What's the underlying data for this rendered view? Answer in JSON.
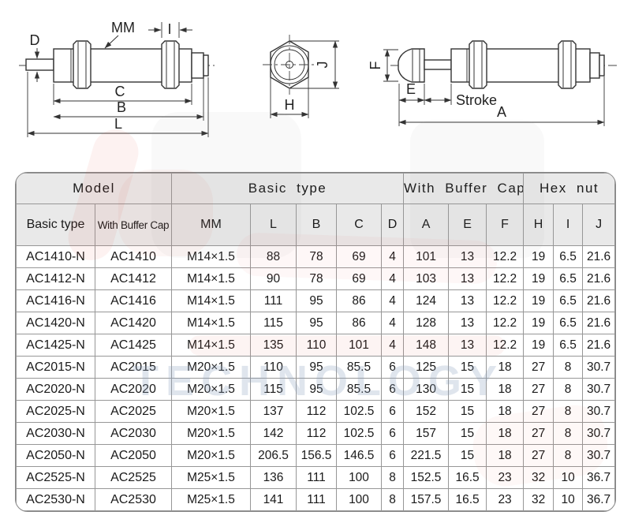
{
  "diagram_labels": {
    "side_view": {
      "thread": "MM",
      "nut_width": "I",
      "rod_diameter": "D",
      "c": "C",
      "b": "B",
      "l": "L"
    },
    "hex_view": {
      "j": "J",
      "h": "H"
    },
    "buffer_view": {
      "f": "F",
      "e": "E",
      "stroke": "Stroke",
      "a": "A"
    }
  },
  "watermark": {
    "text": "TECHNOLOGY"
  },
  "table": {
    "header_groups": [
      {
        "label": "Model"
      },
      {
        "label": "Basic type"
      },
      {
        "label": "With Buffer Cap"
      },
      {
        "label": "Hex nut"
      }
    ],
    "columns": [
      "Basic type",
      "With Buffer Cap",
      "MM",
      "L",
      "B",
      "C",
      "D",
      "A",
      "E",
      "F",
      "H",
      "I",
      "J"
    ],
    "rows": [
      [
        "AC1410-N",
        "AC1410",
        "M14×1.5",
        "88",
        "78",
        "69",
        "4",
        "101",
        "13",
        "12.2",
        "19",
        "6.5",
        "21.6"
      ],
      [
        "AC1412-N",
        "AC1412",
        "M14×1.5",
        "90",
        "78",
        "69",
        "4",
        "103",
        "13",
        "12.2",
        "19",
        "6.5",
        "21.6"
      ],
      [
        "AC1416-N",
        "AC1416",
        "M14×1.5",
        "111",
        "95",
        "86",
        "4",
        "124",
        "13",
        "12.2",
        "19",
        "6.5",
        "21.6"
      ],
      [
        "AC1420-N",
        "AC1420",
        "M14×1.5",
        "115",
        "95",
        "86",
        "4",
        "128",
        "13",
        "12.2",
        "19",
        "6.5",
        "21.6"
      ],
      [
        "AC1425-N",
        "AC1425",
        "M14×1.5",
        "135",
        "110",
        "101",
        "4",
        "148",
        "13",
        "12.2",
        "19",
        "6.5",
        "21.6"
      ],
      [
        "AC2015-N",
        "AC2015",
        "M20×1.5",
        "110",
        "95",
        "85.5",
        "6",
        "125",
        "15",
        "18",
        "27",
        "8",
        "30.7"
      ],
      [
        "AC2020-N",
        "AC2020",
        "M20×1.5",
        "115",
        "95",
        "85.5",
        "6",
        "130",
        "15",
        "18",
        "27",
        "8",
        "30.7"
      ],
      [
        "AC2025-N",
        "AC2025",
        "M20×1.5",
        "137",
        "112",
        "102.5",
        "6",
        "152",
        "15",
        "18",
        "27",
        "8",
        "30.7"
      ],
      [
        "AC2030-N",
        "AC2030",
        "M20×1.5",
        "142",
        "112",
        "102.5",
        "6",
        "157",
        "15",
        "18",
        "27",
        "8",
        "30.7"
      ],
      [
        "AC2050-N",
        "AC2050",
        "M20×1.5",
        "206.5",
        "156.5",
        "146.5",
        "6",
        "221.5",
        "15",
        "18",
        "27",
        "8",
        "30.7"
      ],
      [
        "AC2525-N",
        "AC2525",
        "M25×1.5",
        "136",
        "111",
        "100",
        "8",
        "152.5",
        "16.5",
        "23",
        "32",
        "10",
        "36.7"
      ],
      [
        "AC2530-N",
        "AC2530",
        "M25×1.5",
        "141",
        "111",
        "100",
        "8",
        "157.5",
        "16.5",
        "23",
        "32",
        "10",
        "36.7"
      ]
    ]
  },
  "colors": {
    "header_bg": "#e9e9e9",
    "grid_line": "#979797",
    "drawing_line": "#333333",
    "watermark_red": "#e0483a",
    "watermark_blue": "#8fa3bf"
  }
}
